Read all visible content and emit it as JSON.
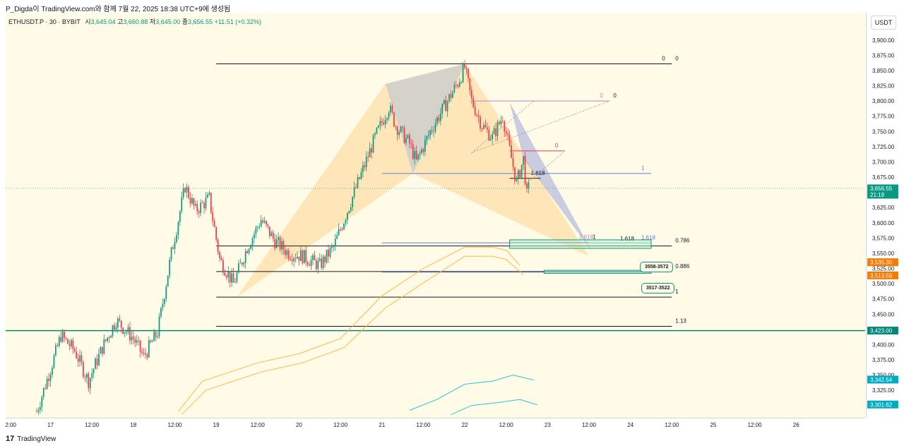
{
  "header": {
    "text": "P_Digda이 TradingView.com와 함께 7월 22, 2025 18:38 UTC+9에 생성됨"
  },
  "legend": {
    "symbol": "ETHUSDT.P · 30 · BYBIT",
    "open_label": "시",
    "open": "3,645.04",
    "high_label": "고",
    "high": "3,660.88",
    "low_label": "저",
    "low": "3,645.00",
    "close_label": "종",
    "close": "3,656.55",
    "change": "+11.51 (+0.32%)"
  },
  "price_axis": {
    "currency": "USDT"
  },
  "footer": {
    "brand": "TradingView",
    "logo": "tradingview-logo-icon"
  },
  "zones": {
    "upper": "3558-3572",
    "lower": "3517-3522"
  },
  "colors": {
    "bull": "#089981",
    "bear": "#f23645",
    "background": "#fffbe6",
    "teal_line": "#00897b",
    "fib_blue": "#5b7fd6",
    "harmonic_fill": "#ffcc80",
    "overlap_fill": "#b0b0b0"
  },
  "chart_data": {
    "type": "candlestick",
    "ylim": [
      3280,
      3945
    ],
    "y_ticks": [
      3300,
      3325,
      3350,
      3375,
      3400,
      3425,
      3450,
      3475,
      3500,
      3525,
      3550,
      3575,
      3600,
      3625,
      3650,
      3675,
      3700,
      3725,
      3750,
      3775,
      3800,
      3825,
      3850,
      3875,
      3900,
      3925
    ],
    "y_tick_labels": [
      "3,300.00",
      "3,325.00",
      "3,350.00",
      "3,375.00",
      "3,400.00",
      "3,425.00",
      "3,450.00",
      "3,475.00",
      "3,500.00",
      "3,525.00",
      "3,550.00",
      "3,575.00",
      "3,600.00",
      "3,625.00",
      "3,650.00",
      "3,675.00",
      "3,700.00",
      "3,725.00",
      "3,750.00",
      "3,775.00",
      "3,800.00",
      "3,825.00",
      "3,850.00",
      "3,875.00",
      "3,900.00",
      "3,925.00"
    ],
    "x_range": [
      "2025-07-16T11:00",
      "2025-07-26T20:00"
    ],
    "x_ticks": [
      {
        "t": "2025-07-16T12:00",
        "label": "12:00"
      },
      {
        "t": "2025-07-17T00:00",
        "label": "17"
      },
      {
        "t": "2025-07-17T12:00",
        "label": "12:00"
      },
      {
        "t": "2025-07-18T00:00",
        "label": "18"
      },
      {
        "t": "2025-07-18T12:00",
        "label": "12:00"
      },
      {
        "t": "2025-07-19T00:00",
        "label": "19"
      },
      {
        "t": "2025-07-19T12:00",
        "label": "12:00"
      },
      {
        "t": "2025-07-20T00:00",
        "label": "20"
      },
      {
        "t": "2025-07-20T12:00",
        "label": "12:00"
      },
      {
        "t": "2025-07-21T00:00",
        "label": "21"
      },
      {
        "t": "2025-07-21T12:00",
        "label": "12:00"
      },
      {
        "t": "2025-07-22T00:00",
        "label": "22"
      },
      {
        "t": "2025-07-22T12:00",
        "label": "12:00"
      },
      {
        "t": "2025-07-23T00:00",
        "label": "23"
      },
      {
        "t": "2025-07-23T12:00",
        "label": "12:00"
      },
      {
        "t": "2025-07-24T00:00",
        "label": "24"
      },
      {
        "t": "2025-07-24T12:00",
        "label": "12:00"
      },
      {
        "t": "2025-07-25T00:00",
        "label": "25"
      },
      {
        "t": "2025-07-25T12:00",
        "label": "12:00"
      },
      {
        "t": "2025-07-26T00:00",
        "label": "26"
      }
    ],
    "close_path": [
      [
        "2025-07-16T20:00",
        3290
      ],
      [
        "2025-07-17T00:00",
        3360
      ],
      [
        "2025-07-17T03:00",
        3415
      ],
      [
        "2025-07-17T07:00",
        3390
      ],
      [
        "2025-07-17T11:00",
        3340
      ],
      [
        "2025-07-17T15:00",
        3395
      ],
      [
        "2025-07-17T19:00",
        3440
      ],
      [
        "2025-07-18T00:00",
        3410
      ],
      [
        "2025-07-18T03:00",
        3380
      ],
      [
        "2025-07-18T07:00",
        3420
      ],
      [
        "2025-07-18T11:00",
        3550
      ],
      [
        "2025-07-18T15:00",
        3660
      ],
      [
        "2025-07-18T18:00",
        3620
      ],
      [
        "2025-07-18T22:00",
        3640
      ],
      [
        "2025-07-19T01:00",
        3540
      ],
      [
        "2025-07-19T05:00",
        3500
      ],
      [
        "2025-07-19T09:00",
        3560
      ],
      [
        "2025-07-19T13:00",
        3605
      ],
      [
        "2025-07-19T17:00",
        3570
      ],
      [
        "2025-07-19T21:00",
        3550
      ],
      [
        "2025-07-20T01:00",
        3545
      ],
      [
        "2025-07-20T06:00",
        3530
      ],
      [
        "2025-07-20T10:00",
        3560
      ],
      [
        "2025-07-20T14:00",
        3620
      ],
      [
        "2025-07-20T18:00",
        3680
      ],
      [
        "2025-07-20T22:00",
        3740
      ],
      [
        "2025-07-21T02:00",
        3790
      ],
      [
        "2025-07-21T04:00",
        3760
      ],
      [
        "2025-07-21T08:00",
        3730
      ],
      [
        "2025-07-21T10:00",
        3700
      ],
      [
        "2025-07-21T14:00",
        3750
      ],
      [
        "2025-07-21T18:00",
        3790
      ],
      [
        "2025-07-21T22:00",
        3830
      ],
      [
        "2025-07-22T00:00",
        3855
      ],
      [
        "2025-07-22T02:00",
        3800
      ],
      [
        "2025-07-22T05:00",
        3760
      ],
      [
        "2025-07-22T08:00",
        3740
      ],
      [
        "2025-07-22T11:00",
        3775
      ],
      [
        "2025-07-22T13:00",
        3720
      ],
      [
        "2025-07-22T15:00",
        3665
      ],
      [
        "2025-07-22T17:00",
        3705
      ],
      [
        "2025-07-22T18:00",
        3645
      ],
      [
        "2025-07-22T18:30",
        3656.55
      ]
    ],
    "ma_lines": [
      {
        "color": "#ffb74d",
        "points": [
          [
            "2025-07-18T13:00",
            3290
          ],
          [
            "2025-07-18T20:00",
            3340
          ],
          [
            "2025-07-19T04:00",
            3355
          ],
          [
            "2025-07-19T12:00",
            3370
          ],
          [
            "2025-07-20T00:00",
            3385
          ],
          [
            "2025-07-20T12:00",
            3410
          ],
          [
            "2025-07-21T00:00",
            3480
          ],
          [
            "2025-07-21T12:00",
            3525
          ],
          [
            "2025-07-22T00:00",
            3560
          ],
          [
            "2025-07-22T08:00",
            3560
          ],
          [
            "2025-07-22T12:00",
            3555
          ],
          [
            "2025-07-22T16:00",
            3530
          ]
        ]
      },
      {
        "color": "#ffb74d",
        "points": [
          [
            "2025-07-18T14:00",
            3285
          ],
          [
            "2025-07-18T21:00",
            3325
          ],
          [
            "2025-07-19T05:00",
            3340
          ],
          [
            "2025-07-19T13:00",
            3355
          ],
          [
            "2025-07-20T01:00",
            3370
          ],
          [
            "2025-07-20T13:00",
            3395
          ],
          [
            "2025-07-21T01:00",
            3460
          ],
          [
            "2025-07-21T13:00",
            3505
          ],
          [
            "2025-07-22T00:00",
            3545
          ],
          [
            "2025-07-22T08:00",
            3545
          ],
          [
            "2025-07-22T12:00",
            3540
          ],
          [
            "2025-07-22T17:00",
            3515
          ]
        ]
      },
      {
        "color": "#26c6da",
        "points": [
          [
            "2025-07-21T08:00",
            3292
          ],
          [
            "2025-07-21T16:00",
            3310
          ],
          [
            "2025-07-22T00:00",
            3335
          ],
          [
            "2025-07-22T08:00",
            3340
          ],
          [
            "2025-07-22T14:00",
            3350
          ],
          [
            "2025-07-22T20:00",
            3342
          ]
        ]
      },
      {
        "color": "#26c6da",
        "points": [
          [
            "2025-07-21T20:00",
            3285
          ],
          [
            "2025-07-22T02:00",
            3300
          ],
          [
            "2025-07-22T10:00",
            3305
          ],
          [
            "2025-07-22T16:00",
            3310
          ],
          [
            "2025-07-22T21:00",
            3301
          ]
        ]
      }
    ],
    "horizontal_levels": [
      {
        "price": 3861,
        "t0": "2025-07-19T00:00",
        "t1": "2025-07-24T12:00",
        "color": "#131722",
        "label_inner": "0",
        "label_outer": "0"
      },
      {
        "price": 3562,
        "t0": "2025-07-19T00:00",
        "t1": "2025-07-24T12:00",
        "color": "#131722",
        "label_outer": "0.786"
      },
      {
        "price": 3520,
        "t0": "2025-07-19T00:00",
        "t1": "2025-07-24T12:00",
        "color": "#131722",
        "label_outer": "0.886"
      },
      {
        "price": 3478,
        "t0": "2025-07-19T00:00",
        "t1": "2025-07-24T12:00",
        "color": "#131722",
        "label_outer": "1"
      },
      {
        "price": 3430,
        "t0": "2025-07-19T00:00",
        "t1": "2025-07-24T12:00",
        "color": "#131722",
        "label_outer": "1.13"
      },
      {
        "price": 3681,
        "t0": "2025-07-21T00:00",
        "t1": "2025-07-24T06:00",
        "color": "#5b7fd6",
        "label_inner": "1"
      },
      {
        "price": 3567,
        "t0": "2025-07-21T00:00",
        "t1": "2025-07-24T06:00",
        "color": "#5b7fd6",
        "label_inner": "1.618"
      },
      {
        "price": 3519,
        "t0": "2025-07-21T00:00",
        "t1": "2025-07-24T06:00",
        "color": "#5b7fd6",
        "label_inner": "1.902"
      },
      {
        "price": 3800,
        "t0": "2025-07-22T02:00",
        "t1": "2025-07-23T18:00",
        "color": "#b388c7",
        "label_inner": "0",
        "label_outer": "0"
      },
      {
        "price": 3718,
        "t0": "2025-07-22T13:00",
        "t1": "2025-07-23T05:00",
        "color": "#f23645",
        "label_inner": "0"
      },
      {
        "price": 3673,
        "t0": "2025-07-22T13:00",
        "t1": "2025-07-22T22:00",
        "color": "#131722",
        "label_inner": "1.618"
      },
      {
        "price": 3568,
        "t0": "2025-07-22T13:00",
        "t1": "2025-07-23T12:00",
        "color": "#b388c7",
        "label_inner": "2.618",
        "label_outer": "1"
      },
      {
        "price": 3423,
        "t0": "2025-07-16T11:00",
        "t1": "2025-07-26T20:00",
        "color": "#00897b",
        "label_inner": ""
      }
    ],
    "inline_labels": [
      {
        "text": "1.618",
        "price": 3571,
        "t": "2025-07-23T21:00",
        "color": "#131722"
      }
    ],
    "harmonic_pattern": {
      "X": [
        "2025-07-19T06:00",
        3478
      ],
      "A": [
        "2025-07-21T01:00",
        3828
      ],
      "B": [
        "2025-07-21T09:00",
        3681
      ],
      "C": [
        "2025-07-22T00:00",
        3861
      ],
      "D": [
        "2025-07-23T12:00",
        3545
      ]
    },
    "price_labels": [
      {
        "price": 3656.55,
        "text": "3,656.55",
        "sub": "21:19",
        "color": "#089981"
      },
      {
        "price": 3535.3,
        "text": "3,535.30",
        "color": "#f57c00"
      },
      {
        "price": 3513.59,
        "text": "3,513.59",
        "color": "#f57c00"
      },
      {
        "price": 3423.0,
        "text": "3,423.00",
        "color": "#00897b"
      },
      {
        "price": 3342.54,
        "text": "3,342.54",
        "color": "#00acc1"
      },
      {
        "price": 3301.62,
        "text": "3,301.62",
        "color": "#00acc1"
      }
    ]
  }
}
